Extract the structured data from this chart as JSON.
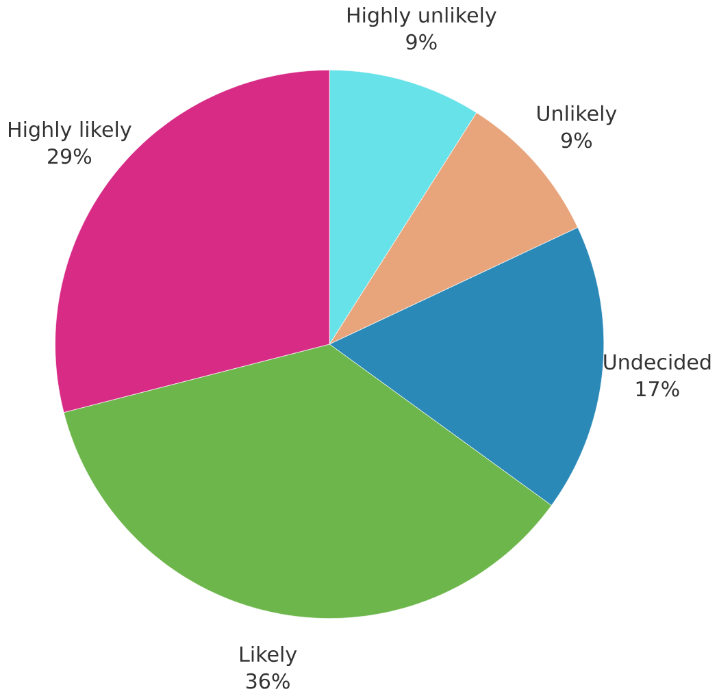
{
  "chart_data": {
    "type": "pie",
    "categories": [
      "Highly unlikely",
      "Unlikely",
      "Undecided",
      "Likely",
      "Highly likely"
    ],
    "values": [
      9,
      9,
      17,
      36,
      29
    ],
    "value_labels": [
      "9%",
      "9%",
      "17%",
      "36%",
      "29%"
    ],
    "colors": [
      "#67e2e8",
      "#e8a57c",
      "#2b89b8",
      "#6db64b",
      "#d72b86"
    ]
  }
}
